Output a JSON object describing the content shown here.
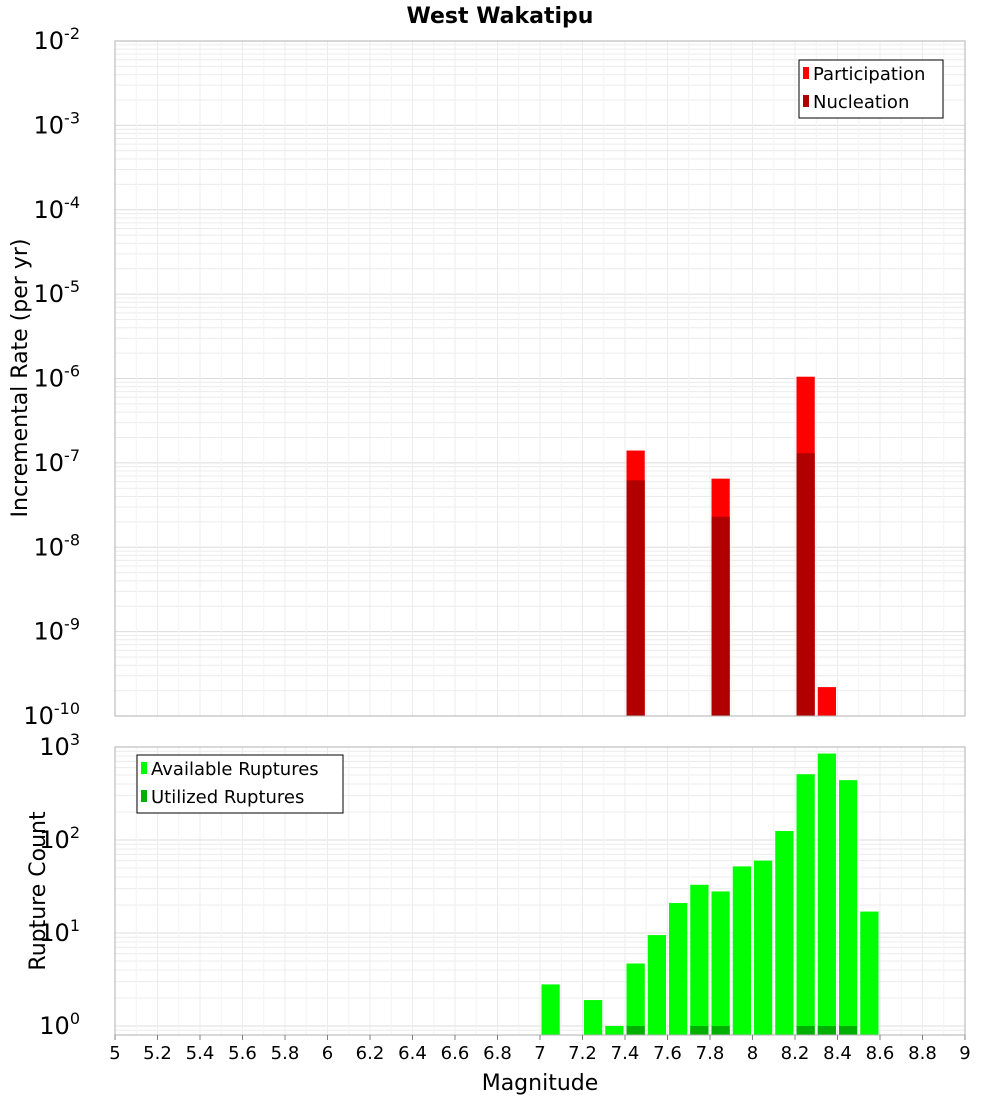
{
  "chart_data": {
    "title": "West Wakatipu",
    "xlabel": "Magnitude",
    "xlim": [
      5,
      9
    ],
    "x_ticks": [
      5,
      5.2,
      5.4,
      5.6,
      5.8,
      6,
      6.2,
      6.4,
      6.6,
      6.8,
      7,
      7.2,
      7.4,
      7.6,
      7.8,
      8,
      8.2,
      8.4,
      8.6,
      8.8,
      9
    ],
    "x_tick_labels": [
      "5",
      "5.2",
      "5.4",
      "5.6",
      "5.8",
      "6",
      "6.2",
      "6.4",
      "6.6",
      "6.8",
      "7",
      "7.2",
      "7.4",
      "7.6",
      "7.8",
      "8",
      "8.2",
      "8.4",
      "8.6",
      "8.8",
      "9"
    ],
    "bar_width": 0.1,
    "panels": [
      {
        "type": "bar",
        "ylabel": "Incremental Rate (per yr)",
        "y_scale": "log",
        "ylim": [
          1e-10,
          0.01
        ],
        "y_ticks": [
          {
            "mantissa": "10",
            "exponent": "-10",
            "value": 1e-10
          },
          {
            "mantissa": "10",
            "exponent": "-9",
            "value": 1e-09
          },
          {
            "mantissa": "10",
            "exponent": "-8",
            "value": 1e-08
          },
          {
            "mantissa": "10",
            "exponent": "-7",
            "value": 1e-07
          },
          {
            "mantissa": "10",
            "exponent": "-6",
            "value": 1e-06
          },
          {
            "mantissa": "10",
            "exponent": "-5",
            "value": 1e-05
          },
          {
            "mantissa": "10",
            "exponent": "-4",
            "value": 0.0001
          },
          {
            "mantissa": "10",
            "exponent": "-3",
            "value": 0.001
          },
          {
            "mantissa": "10",
            "exponent": "-2",
            "value": 0.01
          }
        ],
        "grid": true,
        "legend_position": "top-right",
        "series": [
          {
            "name": "Participation",
            "color": "#ff0000",
            "points": [
              {
                "x": 7.45,
                "y": 1.4e-07
              },
              {
                "x": 7.85,
                "y": 6.5e-08
              },
              {
                "x": 8.25,
                "y": 1.05e-06
              },
              {
                "x": 8.35,
                "y": 2.2e-10
              }
            ]
          },
          {
            "name": "Nucleation",
            "color": "#b00000",
            "points": [
              {
                "x": 7.45,
                "y": 6.2e-08
              },
              {
                "x": 7.85,
                "y": 2.3e-08
              },
              {
                "x": 8.25,
                "y": 1.3e-07
              }
            ]
          }
        ]
      },
      {
        "type": "bar",
        "ylabel": "Rupture Count",
        "y_scale": "log",
        "ylim": [
          0.8,
          1000
        ],
        "y_ticks": [
          {
            "mantissa": "10",
            "exponent": "0",
            "value": 1
          },
          {
            "mantissa": "10",
            "exponent": "1",
            "value": 10
          },
          {
            "mantissa": "10",
            "exponent": "2",
            "value": 100
          },
          {
            "mantissa": "10",
            "exponent": "3",
            "value": 1000
          }
        ],
        "grid": true,
        "legend_position": "top-left",
        "series": [
          {
            "name": "Available Ruptures",
            "color": "#00ff00",
            "points": [
              {
                "x": 7.05,
                "y": 2.8
              },
              {
                "x": 7.25,
                "y": 1.9
              },
              {
                "x": 7.35,
                "y": 1
              },
              {
                "x": 7.45,
                "y": 4.7
              },
              {
                "x": 7.55,
                "y": 9.5
              },
              {
                "x": 7.65,
                "y": 21
              },
              {
                "x": 7.75,
                "y": 33
              },
              {
                "x": 7.85,
                "y": 28
              },
              {
                "x": 7.95,
                "y": 52
              },
              {
                "x": 8.05,
                "y": 60
              },
              {
                "x": 8.15,
                "y": 125
              },
              {
                "x": 8.25,
                "y": 510
              },
              {
                "x": 8.35,
                "y": 850
              },
              {
                "x": 8.45,
                "y": 440
              },
              {
                "x": 8.55,
                "y": 17
              }
            ]
          },
          {
            "name": "Utilized Ruptures",
            "color": "#00b000",
            "points": [
              {
                "x": 7.45,
                "y": 1
              },
              {
                "x": 7.75,
                "y": 1
              },
              {
                "x": 7.85,
                "y": 1
              },
              {
                "x": 8.25,
                "y": 1
              },
              {
                "x": 8.35,
                "y": 1
              },
              {
                "x": 8.45,
                "y": 1
              }
            ]
          }
        ]
      }
    ]
  }
}
